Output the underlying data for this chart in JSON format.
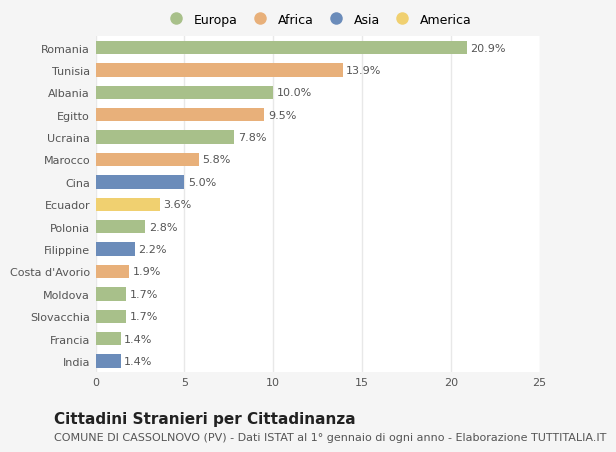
{
  "categories": [
    "Romania",
    "Tunisia",
    "Albania",
    "Egitto",
    "Ucraina",
    "Marocco",
    "Cina",
    "Ecuador",
    "Polonia",
    "Filippine",
    "Costa d'Avorio",
    "Moldova",
    "Slovacchia",
    "Francia",
    "India"
  ],
  "values": [
    20.9,
    13.9,
    10.0,
    9.5,
    7.8,
    5.8,
    5.0,
    3.6,
    2.8,
    2.2,
    1.9,
    1.7,
    1.7,
    1.4,
    1.4
  ],
  "continents": [
    "Europa",
    "Africa",
    "Europa",
    "Africa",
    "Europa",
    "Africa",
    "Asia",
    "America",
    "Europa",
    "Asia",
    "Africa",
    "Europa",
    "Europa",
    "Europa",
    "Asia"
  ],
  "continent_colors": {
    "Europa": "#a8c08a",
    "Africa": "#e8b07a",
    "Asia": "#6b8cba",
    "America": "#f0d070"
  },
  "legend_order": [
    "Europa",
    "Africa",
    "Asia",
    "America"
  ],
  "xlim": [
    0,
    25
  ],
  "xticks": [
    0,
    5,
    10,
    15,
    20,
    25
  ],
  "title": "Cittadini Stranieri per Cittadinanza",
  "subtitle": "COMUNE DI CASSOLNOVO (PV) - Dati ISTAT al 1° gennaio di ogni anno - Elaborazione TUTTITALIA.IT",
  "outer_bg_color": "#f5f5f5",
  "plot_bg_color": "#ffffff",
  "grid_color": "#e8e8e8",
  "label_color": "#555555",
  "value_label_color": "#555555",
  "title_fontsize": 11,
  "subtitle_fontsize": 8,
  "tick_fontsize": 8,
  "label_fontsize": 8,
  "value_fontsize": 8,
  "legend_fontsize": 9,
  "bar_height": 0.6
}
